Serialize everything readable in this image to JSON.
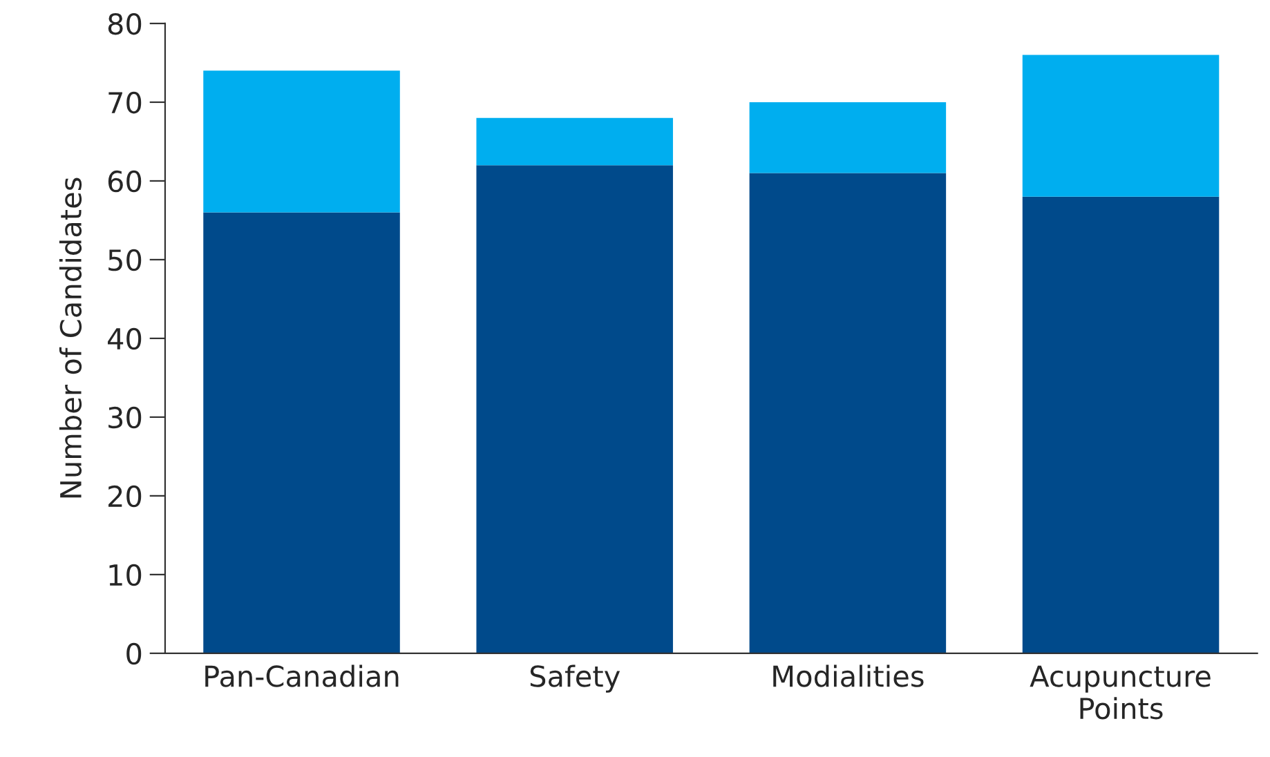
{
  "chart_data": {
    "type": "bar",
    "stacked": true,
    "ylabel": "Number of Candidates",
    "categories": [
      "Pan-Canadian",
      "Safety",
      "Modialities",
      "Acupuncture\nPoints"
    ],
    "series": [
      {
        "color": "#004a8b",
        "values": [
          56,
          62,
          61,
          58
        ]
      },
      {
        "color": "#00aeef",
        "values": [
          18,
          6,
          9,
          18
        ]
      }
    ],
    "ylim": [
      0,
      80
    ],
    "yticks": [
      0,
      10,
      20,
      30,
      40,
      50,
      60,
      70,
      80
    ],
    "grid": false
  }
}
